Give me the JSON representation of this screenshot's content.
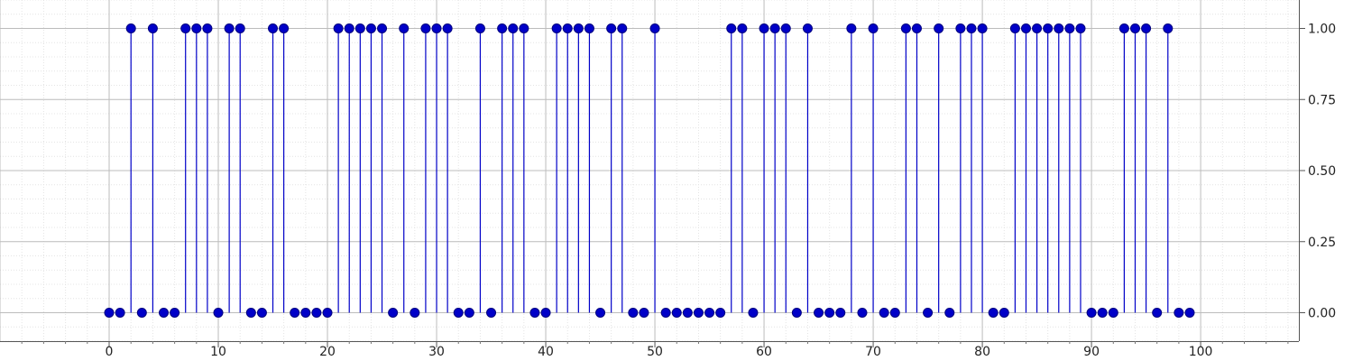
{
  "chart_data": {
    "type": "stem",
    "title": "",
    "xlabel": "",
    "ylabel": "",
    "xlim": [
      -10,
      109
    ],
    "ylim": [
      -0.1,
      1.1
    ],
    "x_ticks": [
      0,
      10,
      20,
      30,
      40,
      50,
      60,
      70,
      80,
      90,
      100
    ],
    "y_ticks": [
      0.0,
      0.25,
      0.5,
      0.75,
      1.0
    ],
    "x_tick_labels": [
      "0",
      "10",
      "20",
      "30",
      "40",
      "50",
      "60",
      "70",
      "80",
      "90",
      "100"
    ],
    "y_tick_labels": [
      "0.00",
      "0.25",
      "0.50",
      "0.75",
      "1.00"
    ],
    "y_axis_side": "right",
    "grid": true,
    "minor_grid": true,
    "legend": "none",
    "color": "#0000c8",
    "x": [
      0,
      1,
      2,
      3,
      4,
      5,
      6,
      7,
      8,
      9,
      10,
      11,
      12,
      13,
      14,
      15,
      16,
      17,
      18,
      19,
      20,
      21,
      22,
      23,
      24,
      25,
      26,
      27,
      28,
      29,
      30,
      31,
      32,
      33,
      34,
      35,
      36,
      37,
      38,
      39,
      40,
      41,
      42,
      43,
      44,
      45,
      46,
      47,
      48,
      49,
      50,
      51,
      52,
      53,
      54,
      55,
      56,
      57,
      58,
      59,
      60,
      61,
      62,
      63,
      64,
      65,
      66,
      67,
      68,
      69,
      70,
      71,
      72,
      73,
      74,
      75,
      76,
      77,
      78,
      79,
      80,
      81,
      82,
      83,
      84,
      85,
      86,
      87,
      88,
      89,
      90,
      91,
      92,
      93,
      94,
      95,
      96,
      97,
      98,
      99
    ],
    "values": [
      0,
      0,
      1,
      0,
      1,
      0,
      0,
      1,
      1,
      1,
      0,
      1,
      1,
      0,
      0,
      1,
      1,
      0,
      0,
      0,
      0,
      1,
      1,
      1,
      1,
      1,
      0,
      1,
      0,
      1,
      1,
      1,
      0,
      0,
      1,
      0,
      1,
      1,
      1,
      0,
      0,
      1,
      1,
      1,
      1,
      0,
      1,
      1,
      0,
      0,
      1,
      0,
      0,
      0,
      0,
      0,
      0,
      1,
      1,
      0,
      1,
      1,
      1,
      0,
      1,
      0,
      0,
      0,
      1,
      0,
      1,
      0,
      0,
      1,
      1,
      0,
      1,
      0,
      1,
      1,
      1,
      0,
      0,
      1,
      1,
      1,
      1,
      1,
      1,
      1,
      0,
      0,
      0,
      1,
      1,
      1,
      0,
      1,
      0,
      0
    ]
  }
}
